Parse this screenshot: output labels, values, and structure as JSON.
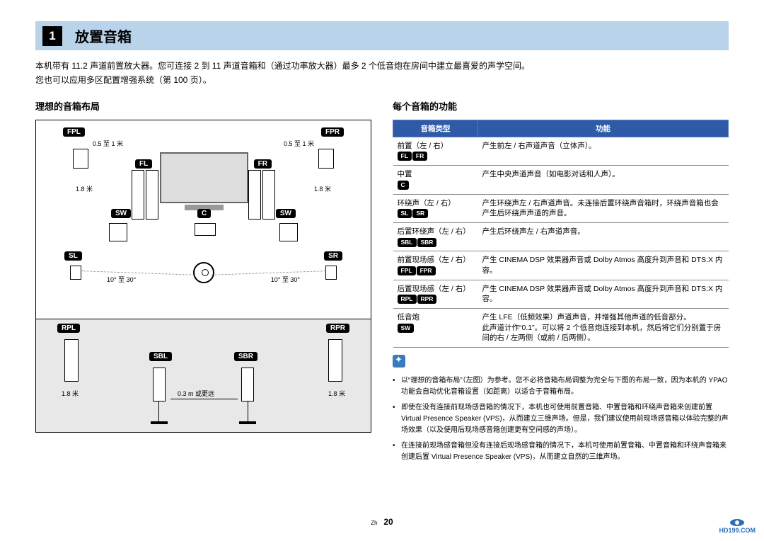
{
  "header": {
    "num": "1",
    "title": "放置音箱"
  },
  "intro": {
    "line1": "本机带有 11.2 声道前置放大器。您可连接 2 到 11 声道音箱和（通过功率放大器）最多 2 个低音炮在房间中建立最喜爱的声学空间。",
    "line2": "您也可以应用多区配置增强系统（第  100  页）。"
  },
  "left": {
    "heading": "理想的音箱布局",
    "labels": {
      "fpl": "FPL",
      "fpr": "FPR",
      "fl": "FL",
      "fr": "FR",
      "sw1": "SW",
      "c": "C",
      "sw2": "SW",
      "sl": "SL",
      "sr": "SR",
      "rpl": "RPL",
      "rpr": "RPR",
      "sbl": "SBL",
      "sbr": "SBR"
    },
    "dims": {
      "top_left": "0.5 至 1 米",
      "top_right": "0.5 至 1 米",
      "side_left": "1.8 米",
      "side_right": "1.8 米",
      "angle_left": "10° 至 30°",
      "angle_right": "10° 至 30°",
      "rear_side_left": "1.8 米",
      "rear_side_right": "1.8 米",
      "rear_mid": "0.3 m 或更远"
    }
  },
  "right": {
    "heading": "每个音箱的功能",
    "table": {
      "th1": "音箱类型",
      "th2": "功能",
      "rows": [
        {
          "name": "前置（左 / 右）",
          "tags": [
            "FL",
            "FR"
          ],
          "func": "产生前左 / 右声道声音（立体声）。"
        },
        {
          "name": "中置",
          "tags": [
            "C"
          ],
          "func": "产生中央声道声音（如电影对话和人声）。"
        },
        {
          "name": "环绕声（左 / 右）",
          "tags": [
            "SL",
            "SR"
          ],
          "func": "产生环绕声左 / 右声道声音。未连接后置环绕声音箱时，环绕声音箱也会产生后环绕声声道的声音。"
        },
        {
          "name": "后置环绕声（左 / 右）",
          "tags": [
            "SBL",
            "SBR"
          ],
          "func": "产生后环绕声左 / 右声道声音。"
        },
        {
          "name": "前置现场感（左 / 右）",
          "tags": [
            "FPL",
            "FPR"
          ],
          "func": "产生 CINEMA DSP 效果器声音或 Dolby Atmos 高度升到声音和 DTS:X 内容。"
        },
        {
          "name": "后置现场感（左 / 右）",
          "tags": [
            "RPL",
            "RPR"
          ],
          "func": "产生 CINEMA DSP 效果器声音或 Dolby Atmos 高度升到声音和 DTS:X 内容。"
        },
        {
          "name": "低音炮",
          "tags": [
            "SW"
          ],
          "func": "产生 LFE（低频效果）声道声音，并增强其他声道的低音部分。\n此声道计作“0.1”。可以将 2 个低音炮连接到本机，然后将它们分别置于房间的右 / 左两侧（或前 / 后两侧）。"
        }
      ]
    },
    "notes": [
      "以“理想的音箱布局”（左图）为参考。您不必将音箱布局调整为完全与下图的布局一致，因为本机的 YPAO 功能会自动优化音箱设置（如距离）以适合于音箱布局。",
      "即使在没有连接前现场感音箱的情况下，本机也可使用前置音箱、中置音箱和环绕声音箱来创建前置 Virtual Presence Speaker (VPS)，从而建立三维声场。但是，我们建议使用前现场感音箱以体验完整的声场效果（以及使用后现场感音箱创建更有空间感的声场）。",
      "在连接前现场感音箱但没有连接后现场感音箱的情况下，本机可使用前置音箱、中置音箱和环绕声音箱来创建后置 Virtual Presence Speaker (VPS)，从而建立自然的三维声场。"
    ]
  },
  "footer": {
    "lang": "Zh",
    "page": "20"
  },
  "watermark": "HD199.COM"
}
